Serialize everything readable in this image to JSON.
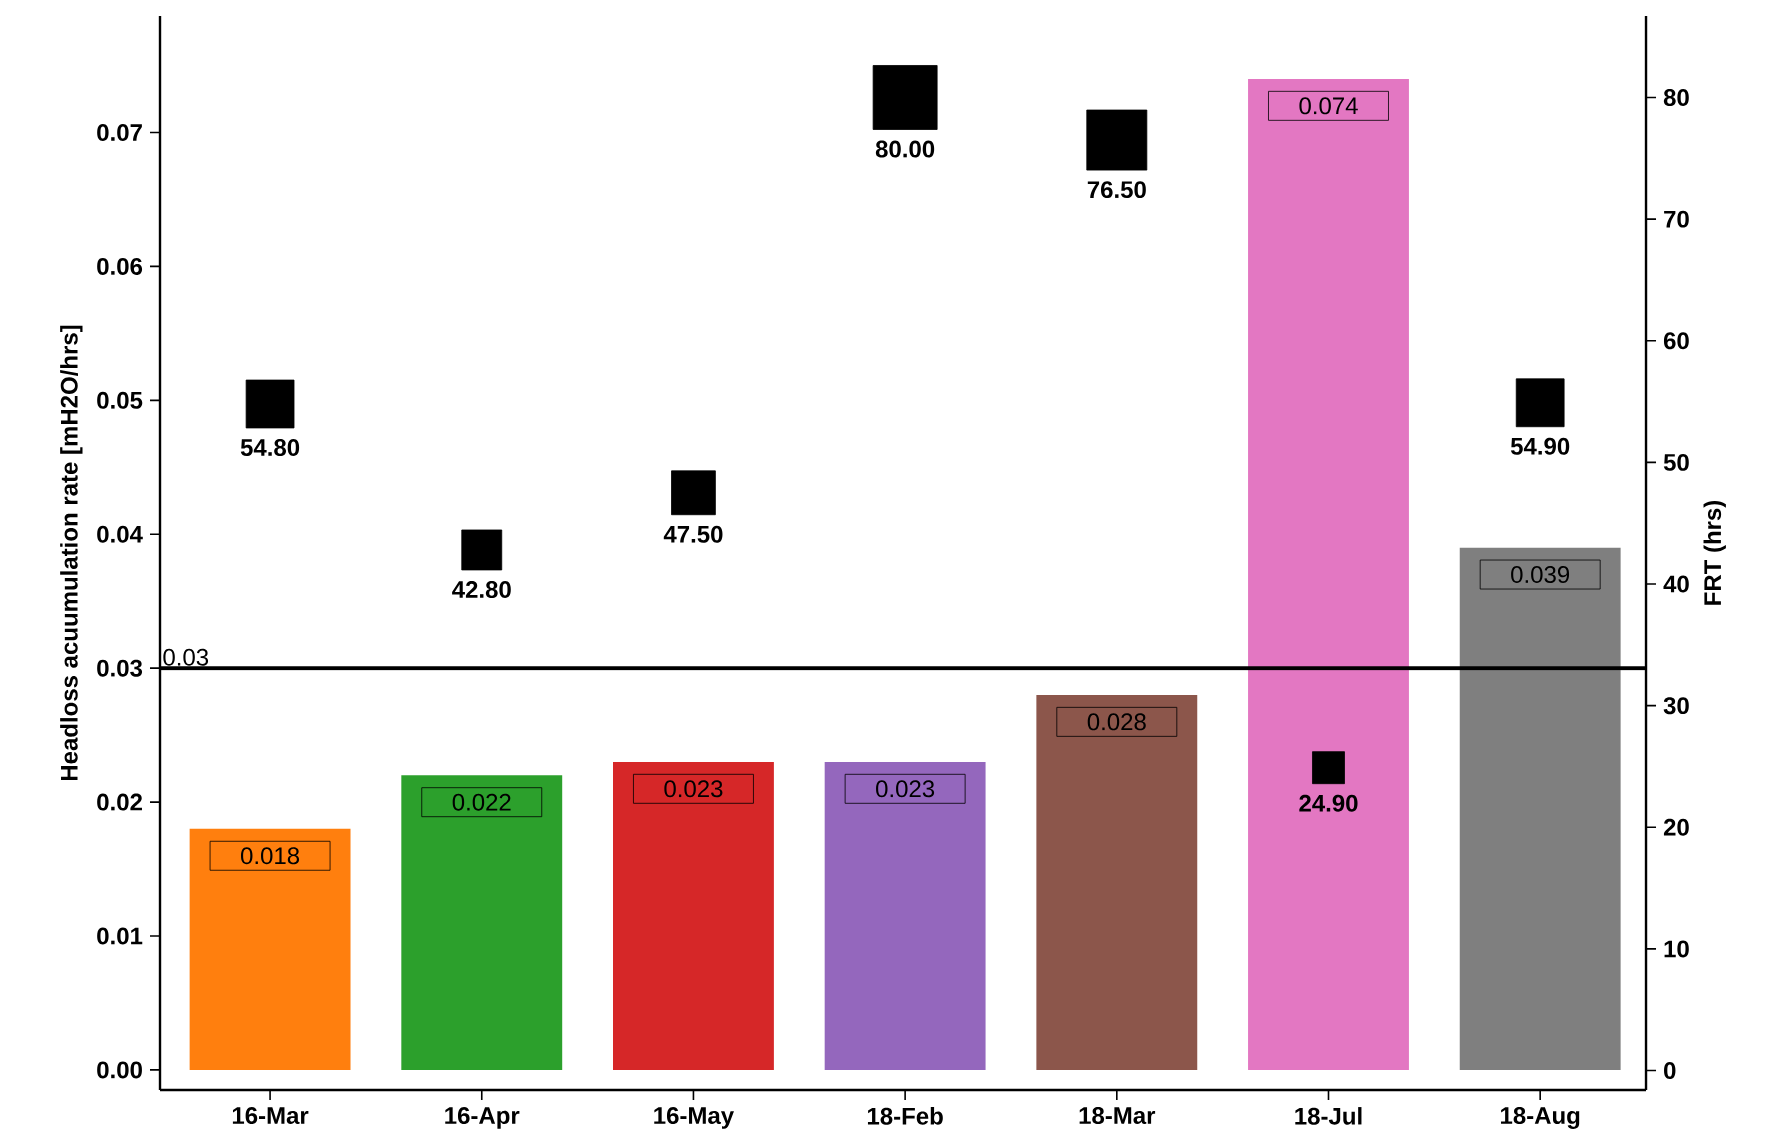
{
  "chart_data": {
    "type": "bar",
    "categories": [
      "16-Mar",
      "16-Apr",
      "16-May",
      "18-Feb",
      "18-Mar",
      "18-Jul",
      "18-Aug"
    ],
    "ylabel": "Headloss acuumulation rate [mH2O/hrs]",
    "y2label": "FRT (hrs)",
    "series": [
      {
        "colors": [
          "#ff7f0e",
          "#2ca02c",
          "#d62728",
          "#9467bd",
          "#8c564b",
          "#e377c2",
          "#7f7f7f"
        ],
        "values": [
          0.018,
          0.022,
          0.023,
          0.023,
          0.028,
          0.074,
          0.039
        ],
        "value_labels": [
          "0.018",
          "0.022",
          "0.023",
          "0.023",
          "0.028",
          "0.074",
          "0.039"
        ]
      },
      {
        "type": "bubble",
        "axis": "y2",
        "color": "#000000",
        "marker": "square",
        "values": [
          54.8,
          42.8,
          47.5,
          80.0,
          76.5,
          24.9,
          54.9
        ],
        "sizes": [
          0.56,
          0.39,
          0.47,
          1,
          0.88,
          0.25,
          0.56
        ],
        "value_labels": [
          "54.80",
          "42.80",
          "47.50",
          "80.00",
          "76.50",
          "24.90",
          "54.90"
        ]
      }
    ],
    "ylim": [
      -0.0015,
      0.0787
    ],
    "yticks": [
      {
        "value": 0,
        "label": "0.00"
      },
      {
        "value": 0.01,
        "label": "0.01"
      },
      {
        "value": 0.02,
        "label": "0.02"
      },
      {
        "value": 0.03,
        "label": "0.03"
      },
      {
        "value": 0.04,
        "label": "0.04"
      },
      {
        "value": 0.05,
        "label": "0.05"
      },
      {
        "value": 0.06,
        "label": "0.06"
      },
      {
        "value": 0.07,
        "label": "0.07"
      }
    ],
    "y2lim": [
      -1.6,
      86.7
    ],
    "y2ticks": [
      0,
      10,
      20,
      30,
      40,
      50,
      60,
      70,
      80
    ],
    "ref_lines": [
      {
        "axis": "y",
        "value": 0.03,
        "label": "0.03",
        "color": "#000000"
      }
    ],
    "grid": false
  }
}
